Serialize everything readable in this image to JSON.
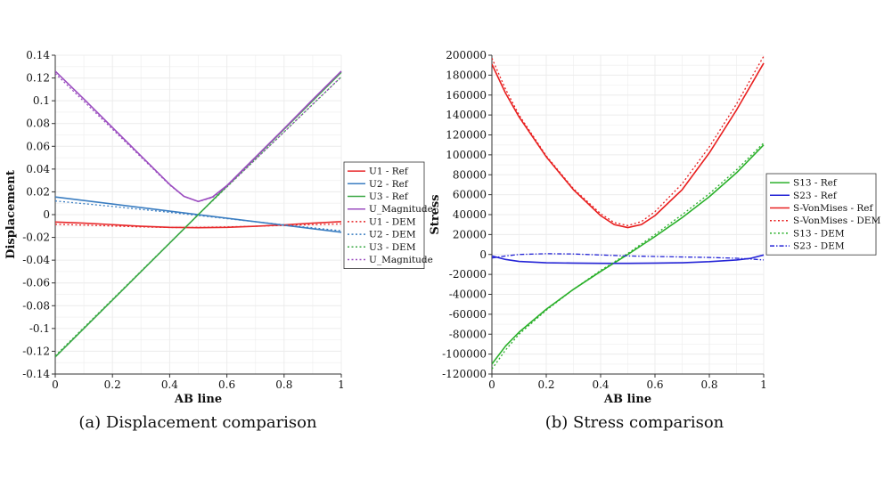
{
  "chart_data": [
    {
      "type": "line",
      "caption": "(a) Displacement comparison",
      "xlabel": "AB line",
      "ylabel": "Displacement",
      "xlim": [
        0,
        1
      ],
      "ylim": [
        -0.14,
        0.14
      ],
      "xticks": [
        "0",
        "0.2",
        "0.4",
        "0.6",
        "0.8",
        "1"
      ],
      "xtick_values": [
        0,
        0.2,
        0.4,
        0.6,
        0.8,
        1
      ],
      "yticks": [
        "-0.14",
        "-0.12",
        "-0.1",
        "-0.08",
        "-0.06",
        "-0.04",
        "-0.02",
        "0",
        "0.02",
        "0.04",
        "0.06",
        "0.08",
        "0.1",
        "0.12",
        "0.14"
      ],
      "ytick_values": [
        -0.14,
        -0.12,
        -0.1,
        -0.08,
        -0.06,
        -0.04,
        -0.02,
        0,
        0.02,
        0.04,
        0.06,
        0.08,
        0.1,
        0.12,
        0.14
      ],
      "grid": true,
      "legend_position": "right",
      "series": [
        {
          "name": "U1 - Ref",
          "color": "#e8292b",
          "dash": "solid",
          "x": [
            0,
            0.1,
            0.2,
            0.3,
            0.4,
            0.5,
            0.6,
            0.7,
            0.8,
            0.9,
            1
          ],
          "y": [
            -0.0065,
            -0.0075,
            -0.0088,
            -0.0102,
            -0.0112,
            -0.0115,
            -0.0112,
            -0.0102,
            -0.009,
            -0.0075,
            -0.0062
          ]
        },
        {
          "name": "U2 - Ref",
          "color": "#3a7dc1",
          "dash": "solid",
          "x": [
            0,
            1
          ],
          "y": [
            0.0155,
            -0.0155
          ]
        },
        {
          "name": "U3 - Ref",
          "color": "#3aa845",
          "dash": "solid",
          "x": [
            0,
            1
          ],
          "y": [
            -0.125,
            0.125
          ]
        },
        {
          "name": "U_Magnitude",
          "color": "#9b4dc0",
          "dash": "solid",
          "x": [
            0,
            0.1,
            0.2,
            0.3,
            0.4,
            0.45,
            0.5,
            0.55,
            0.6,
            0.7,
            0.8,
            0.9,
            1
          ],
          "y": [
            0.126,
            0.1015,
            0.0765,
            0.0515,
            0.0265,
            0.016,
            0.0115,
            0.0155,
            0.0255,
            0.0505,
            0.0755,
            0.101,
            0.126
          ]
        },
        {
          "name": "U1 - DEM",
          "color": "#e8292b",
          "dash": "dotted",
          "x": [
            0,
            0.1,
            0.2,
            0.3,
            0.4,
            0.5,
            0.6,
            0.7,
            0.8,
            0.9,
            1
          ],
          "y": [
            -0.0085,
            -0.0092,
            -0.01,
            -0.0108,
            -0.0113,
            -0.0112,
            -0.0108,
            -0.0102,
            -0.0095,
            -0.0088,
            -0.0082
          ]
        },
        {
          "name": "U2 - DEM",
          "color": "#3a7dc1",
          "dash": "dotted",
          "x": [
            0,
            0.2,
            0.4,
            0.6,
            0.8,
            1
          ],
          "y": [
            0.012,
            0.0072,
            0.002,
            -0.0035,
            -0.009,
            -0.0142
          ]
        },
        {
          "name": "U3 - DEM",
          "color": "#3aa845",
          "dash": "dotted",
          "x": [
            0,
            0.5,
            1
          ],
          "y": [
            -0.124,
            0.0,
            0.121
          ]
        },
        {
          "name": "U_Magnitude",
          "color": "#9b4dc0",
          "dash": "dotted",
          "x": [
            0,
            0.1,
            0.2,
            0.3,
            0.4,
            0.45,
            0.5,
            0.55,
            0.6,
            0.7,
            0.8,
            0.9,
            1
          ],
          "y": [
            0.124,
            0.0995,
            0.075,
            0.0505,
            0.026,
            0.016,
            0.0115,
            0.015,
            0.0245,
            0.0485,
            0.0725,
            0.097,
            0.121
          ]
        }
      ]
    },
    {
      "type": "line",
      "caption": "(b) Stress comparison",
      "xlabel": "AB line",
      "ylabel": "Stress",
      "xlim": [
        0,
        1
      ],
      "ylim": [
        -120000,
        200000
      ],
      "xticks": [
        "0",
        "0.2",
        "0.4",
        "0.6",
        "0.8",
        "1"
      ],
      "xtick_values": [
        0,
        0.2,
        0.4,
        0.6,
        0.8,
        1
      ],
      "yticks": [
        "-120000",
        "-100000",
        "-80000",
        "-60000",
        "-40000",
        "-20000",
        "0",
        "20000",
        "40000",
        "60000",
        "80000",
        "100000",
        "120000",
        "140000",
        "160000",
        "180000",
        "200000"
      ],
      "ytick_values": [
        -120000,
        -100000,
        -80000,
        -60000,
        -40000,
        -20000,
        0,
        20000,
        40000,
        60000,
        80000,
        100000,
        120000,
        140000,
        160000,
        180000,
        200000
      ],
      "grid": true,
      "legend_position": "right",
      "series": [
        {
          "name": "S13 - Ref",
          "color": "#2ab02a",
          "dash": "solid",
          "x": [
            0,
            0.05,
            0.1,
            0.2,
            0.3,
            0.4,
            0.5,
            0.6,
            0.7,
            0.8,
            0.9,
            1
          ],
          "y": [
            -110000,
            -92000,
            -78000,
            -55000,
            -35000,
            -17000,
            0,
            18000,
            37000,
            58000,
            82000,
            110000
          ]
        },
        {
          "name": "S23 - Ref",
          "color": "#2424d6",
          "dash": "solid",
          "x": [
            0,
            0.05,
            0.1,
            0.2,
            0.3,
            0.4,
            0.5,
            0.6,
            0.7,
            0.8,
            0.9,
            0.95,
            1
          ],
          "y": [
            -1500,
            -5000,
            -7000,
            -8300,
            -8700,
            -8900,
            -8900,
            -8700,
            -8300,
            -7200,
            -5500,
            -4000,
            -500
          ]
        },
        {
          "name": "S-VonMises - Ref",
          "color": "#e82020",
          "dash": "solid",
          "x": [
            0,
            0.05,
            0.1,
            0.2,
            0.3,
            0.4,
            0.45,
            0.5,
            0.55,
            0.6,
            0.7,
            0.8,
            0.9,
            1
          ],
          "y": [
            191000,
            162000,
            138000,
            98000,
            65000,
            39000,
            30000,
            27000,
            30000,
            39000,
            65000,
            102000,
            145000,
            192000
          ]
        },
        {
          "name": "S-VonMises - DEM",
          "color": "#e82020",
          "dash": "dotted",
          "x": [
            0,
            0.05,
            0.1,
            0.2,
            0.3,
            0.4,
            0.45,
            0.5,
            0.55,
            0.6,
            0.7,
            0.8,
            0.9,
            1
          ],
          "y": [
            197000,
            166000,
            140000,
            99000,
            66000,
            41000,
            32000,
            29000,
            33000,
            43000,
            71000,
            108000,
            151000,
            199000
          ]
        },
        {
          "name": "S13 - DEM",
          "color": "#2ab02a",
          "dash": "dotted",
          "x": [
            0,
            0.05,
            0.1,
            0.2,
            0.3,
            0.4,
            0.5,
            0.6,
            0.7,
            0.8,
            0.9,
            1
          ],
          "y": [
            -115000,
            -96000,
            -80000,
            -56000,
            -35000,
            -16000,
            1000,
            20000,
            40000,
            61000,
            85000,
            112000
          ]
        },
        {
          "name": "S23 - DEM",
          "color": "#2424d6",
          "dash": "dashdot",
          "x": [
            0,
            0.05,
            0.1,
            0.2,
            0.3,
            0.4,
            0.5,
            0.6,
            0.7,
            0.8,
            0.9,
            0.95,
            1
          ],
          "y": [
            -3500,
            -1500,
            0,
            800,
            500,
            -500,
            -1500,
            -2000,
            -2500,
            -3000,
            -3800,
            -4500,
            -5500
          ]
        }
      ]
    }
  ]
}
